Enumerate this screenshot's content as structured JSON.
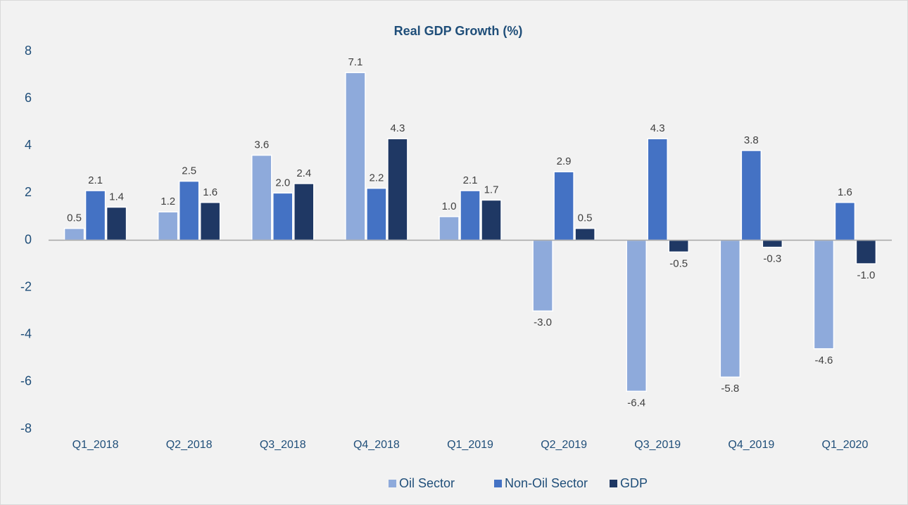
{
  "chart_data": {
    "type": "bar",
    "title": "Real GDP Growth (%)",
    "categories": [
      "Q1_2018",
      "Q2_2018",
      "Q3_2018",
      "Q4_2018",
      "Q1_2019",
      "Q2_2019",
      "Q3_2019",
      "Q4_2019",
      "Q1_2020"
    ],
    "series": [
      {
        "name": "Oil Sector",
        "color": "#8eaadb",
        "values": [
          0.5,
          1.2,
          3.6,
          7.1,
          1.0,
          -3.0,
          -6.4,
          -5.8,
          -4.6
        ],
        "value_labels": [
          "0.5",
          "1.2",
          "3.6",
          "7.1",
          "1.0",
          "-3.0",
          "-6.4",
          "-5.8",
          "-4.6"
        ]
      },
      {
        "name": "Non-Oil Sector",
        "color": "#4472c4",
        "values": [
          2.1,
          2.5,
          2.0,
          2.2,
          2.1,
          2.9,
          4.3,
          3.8,
          1.6
        ],
        "value_labels": [
          "2.1",
          "2.5",
          "2.0",
          "2.2",
          "2.1",
          "2.9",
          "4.3",
          "3.8",
          "1.6"
        ]
      },
      {
        "name": "GDP",
        "color": "#1f3864",
        "values": [
          1.4,
          1.6,
          2.4,
          4.3,
          1.7,
          0.5,
          -0.5,
          -0.3,
          -1.0
        ],
        "value_labels": [
          "1.4",
          "1.6",
          "2.4",
          "4.3",
          "1.7",
          "0.5",
          "-0.5",
          "-0.3",
          "-1.0"
        ]
      }
    ],
    "ylim": [
      -8,
      8
    ],
    "yticks": [
      8,
      6,
      4,
      2,
      0,
      -2,
      -4,
      -6,
      -8
    ],
    "grid": false,
    "legend": "bottom"
  }
}
